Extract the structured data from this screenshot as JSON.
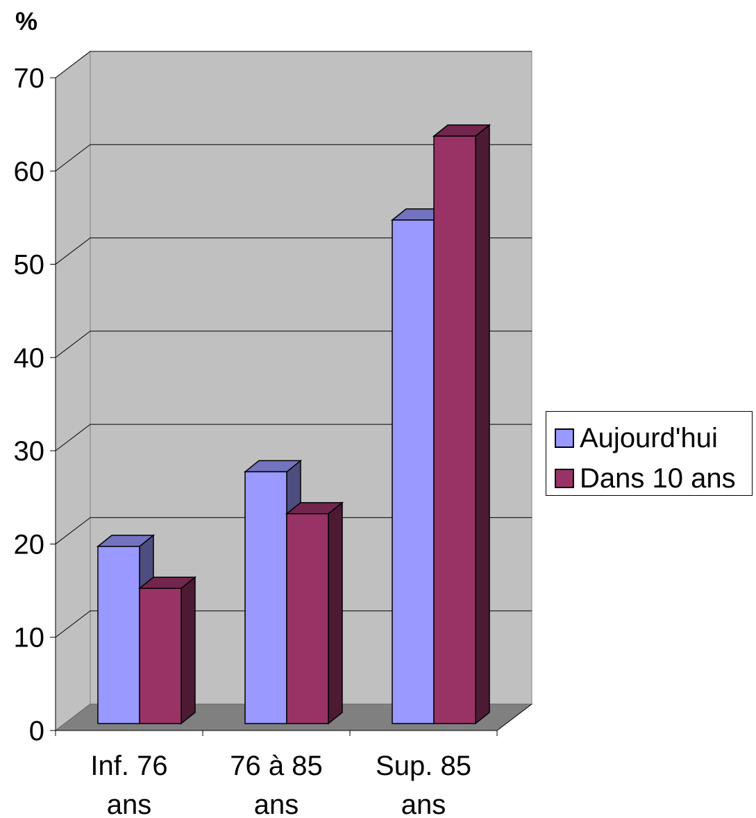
{
  "chart_data": {
    "type": "bar",
    "ylabel": "%",
    "categories": [
      "Inf. 76 ans",
      "76 à 85 ans",
      "Sup. 85 ans"
    ],
    "category_lines": [
      [
        "Inf. 76",
        "ans"
      ],
      [
        "76 à 85",
        "ans"
      ],
      [
        "Sup. 85",
        "ans"
      ]
    ],
    "series": [
      {
        "name": "Aujourd'hui",
        "values": [
          19,
          27,
          54
        ],
        "color": "#9999ff"
      },
      {
        "name": "Dans 10 ans",
        "values": [
          14.5,
          22.5,
          63
        ],
        "color": "#993366"
      }
    ],
    "ylim": [
      0,
      70
    ],
    "yticks": [
      0,
      10,
      20,
      30,
      40,
      50,
      60,
      70
    ],
    "grid": true,
    "legend": "right",
    "style": "3d-clustered-column"
  }
}
